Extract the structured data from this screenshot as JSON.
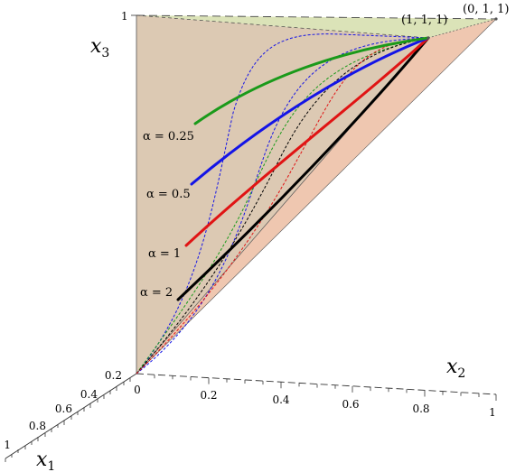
{
  "chart_data": {
    "type": "line",
    "colors": {
      "alpha_0_25": "#1a9a1a",
      "alpha_0_5": "#1414e6",
      "alpha_1": "#e01414",
      "alpha_2": "#000000",
      "back_plane": "#dcc9b3",
      "top_plane": "#dbe3b8",
      "right_plane": "#efc7b0"
    },
    "axes": {
      "x1": {
        "label": "x",
        "sub": "1",
        "ticks": [
          "0.2",
          "0.4",
          "0.6",
          "0.8",
          "1"
        ]
      },
      "x2": {
        "label": "x",
        "sub": "2",
        "ticks": [
          "0",
          "0.2",
          "0.4",
          "0.6",
          "0.8",
          "1"
        ]
      },
      "x3": {
        "label": "x",
        "sub": "3",
        "ticks": [
          "1"
        ]
      }
    },
    "vertex_labels": {
      "p111": "(1, 1, 1)",
      "p011": "(0, 1, 1)"
    },
    "series": [
      {
        "name": "α = 0.25",
        "key": "alpha_0_25",
        "label_text": "α = 0.25"
      },
      {
        "name": "α = 0.5",
        "key": "alpha_0_5",
        "label_text": "α = 0.5"
      },
      {
        "name": "α = 1",
        "key": "alpha_1",
        "label_text": "α = 1"
      },
      {
        "name": "α = 2",
        "key": "alpha_2",
        "label_text": "α = 2"
      }
    ]
  }
}
